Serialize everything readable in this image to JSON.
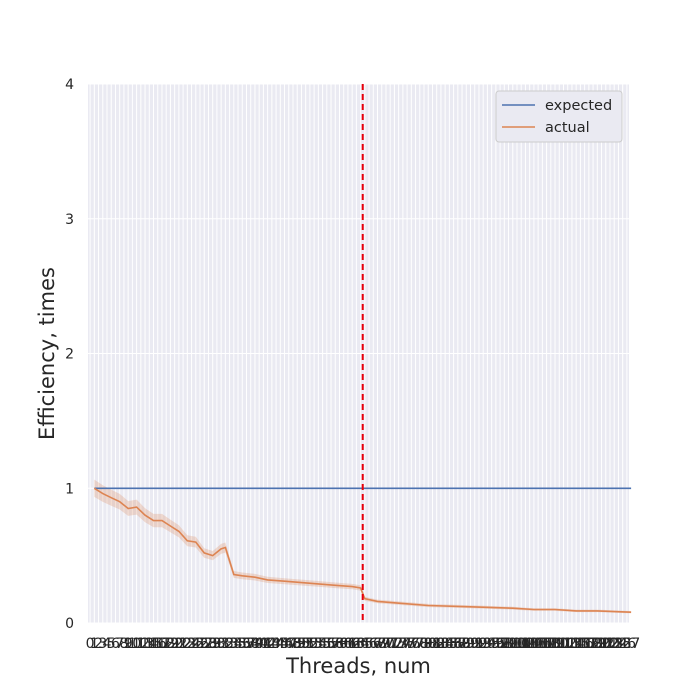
{
  "chart_data": {
    "type": "line",
    "xlabel": "Threads, num",
    "ylabel": "Efficiency, times",
    "title": "",
    "ylim": [
      0,
      4
    ],
    "xlim": [
      1,
      128
    ],
    "grid": true,
    "legend_placement": "top-right",
    "y_ticks": [
      "0",
      "1",
      "2",
      "3",
      "4"
    ],
    "x_tick_labels_overlapping": true,
    "reference_line": {
      "x": 64.5,
      "color": "#e8000b",
      "style": "dashed"
    },
    "series": [
      {
        "name": "expected",
        "color": "#4c72b0",
        "x": [
          1,
          128
        ],
        "y": [
          1.0,
          1.0
        ]
      },
      {
        "name": "actual",
        "color": "#dd8452",
        "band": true,
        "x": [
          1,
          3,
          5,
          7,
          9,
          11,
          13,
          15,
          17,
          19,
          21,
          23,
          25,
          27,
          29,
          31,
          32,
          34,
          36,
          39,
          42,
          46,
          50,
          54,
          58,
          62,
          64,
          65,
          68,
          72,
          80,
          90,
          100,
          105,
          110,
          115,
          120,
          128
        ],
        "y": [
          1.0,
          0.96,
          0.93,
          0.9,
          0.85,
          0.86,
          0.8,
          0.76,
          0.76,
          0.72,
          0.68,
          0.61,
          0.6,
          0.52,
          0.5,
          0.55,
          0.56,
          0.36,
          0.35,
          0.34,
          0.32,
          0.31,
          0.3,
          0.29,
          0.28,
          0.27,
          0.26,
          0.18,
          0.16,
          0.15,
          0.13,
          0.12,
          0.11,
          0.1,
          0.1,
          0.09,
          0.09,
          0.08
        ]
      }
    ],
    "x_ticks": [
      0,
      1,
      2,
      3,
      4,
      5,
      6,
      7,
      8,
      9,
      10,
      11,
      12,
      13,
      14,
      15,
      16,
      17,
      18,
      19,
      20,
      21,
      22,
      23,
      24,
      25,
      26,
      27,
      28,
      29,
      30,
      31,
      32,
      33,
      34,
      35,
      36,
      37,
      38,
      39,
      40,
      41,
      42,
      43,
      44,
      45,
      46,
      47,
      48,
      49,
      50,
      51,
      52,
      53,
      54,
      55,
      56,
      57,
      58,
      59,
      60,
      61,
      62,
      63,
      64,
      65,
      66,
      67,
      68,
      69,
      70,
      71,
      72,
      73,
      74,
      75,
      76,
      77,
      78,
      79,
      80,
      81,
      82,
      83,
      84,
      85,
      86,
      87,
      88,
      89,
      90,
      91,
      92,
      93,
      94,
      95,
      96,
      97,
      98,
      99,
      100,
      101,
      102,
      103,
      104,
      105,
      106,
      107,
      108,
      109,
      110,
      111,
      112,
      113,
      114,
      115,
      116,
      117,
      118,
      119,
      120,
      121,
      122,
      123,
      124,
      125,
      126,
      127
    ]
  }
}
